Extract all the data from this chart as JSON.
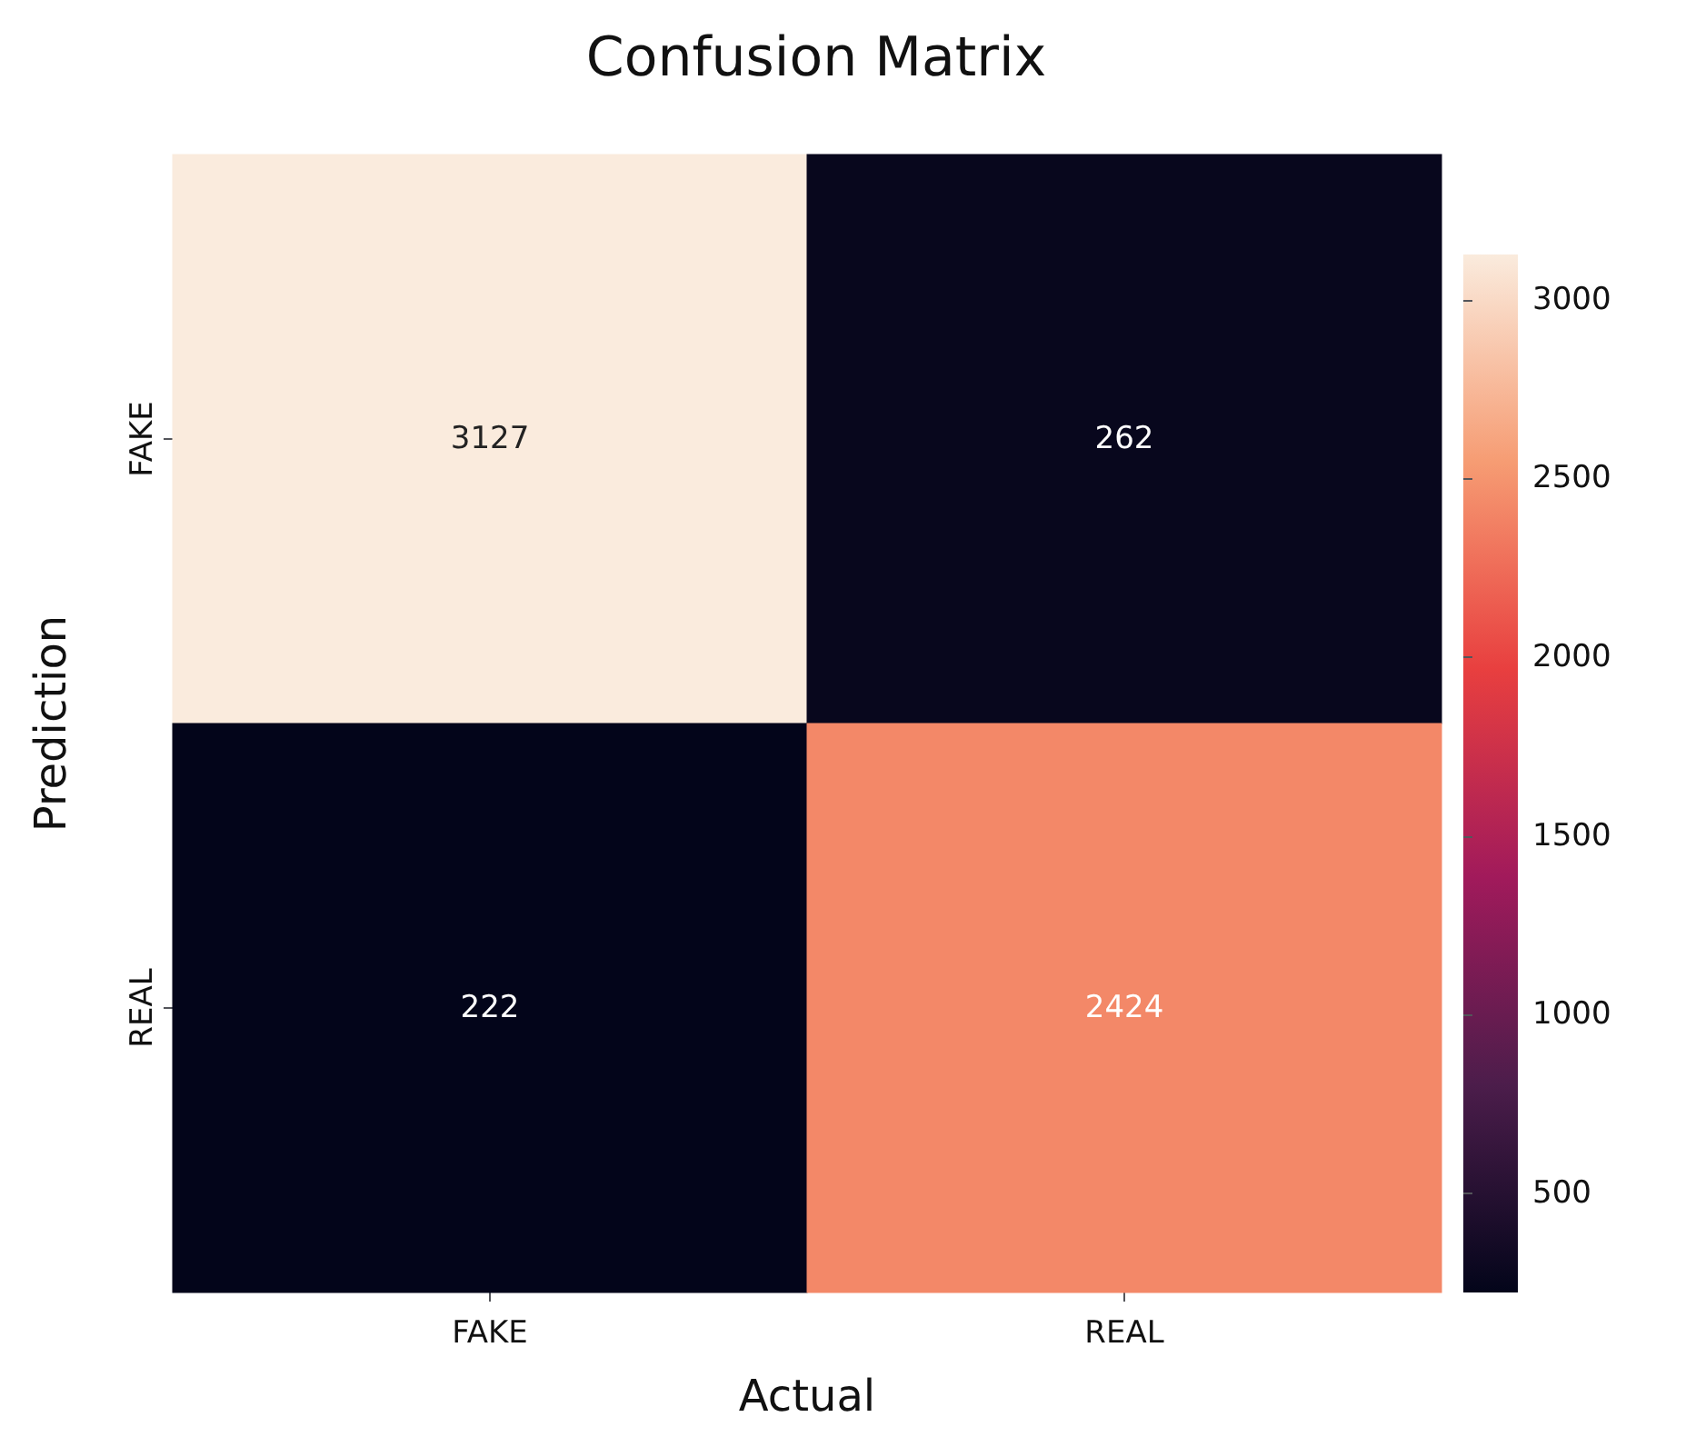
{
  "chart_data": {
    "type": "heatmap",
    "title": "Confusion Matrix",
    "xlabel": "Actual",
    "ylabel": "Prediction",
    "categories": [
      "FAKE",
      "REAL"
    ],
    "y_categories": [
      "FAKE",
      "REAL"
    ],
    "cells": [
      [
        3127,
        262
      ],
      [
        222,
        2424
      ]
    ],
    "clim": [
      222,
      3127
    ],
    "cticks": [
      500,
      1000,
      1500,
      2000,
      2500,
      3000
    ],
    "data_labels": true
  }
}
